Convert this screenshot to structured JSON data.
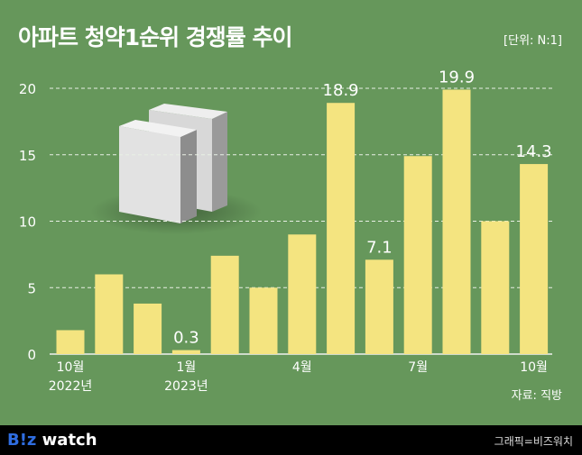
{
  "title": "아파트 청약1순위 경쟁률 추이",
  "unit": "[단위: N:1]",
  "source": "자료: 직방",
  "footer": {
    "logo_b": "B!z",
    "logo_rest": " watch",
    "credit": "그래픽=비즈워치"
  },
  "colors": {
    "background": "#66975b",
    "bar": "#f4e480",
    "footer": "#000000"
  },
  "chart_data": {
    "type": "bar",
    "title": "아파트 청약1순위 경쟁률 추이",
    "categories": [
      "2022-10",
      "2022-11",
      "2022-12",
      "2023-01",
      "2023-02",
      "2023-03",
      "2023-04",
      "2023-05",
      "2023-06",
      "2023-07",
      "2023-08",
      "2023-09",
      "2023-10"
    ],
    "values": [
      1.8,
      6.0,
      3.8,
      0.3,
      7.4,
      5.0,
      9.0,
      18.9,
      7.1,
      14.9,
      19.9,
      10.0,
      14.3
    ],
    "labeled": {
      "3": "0.3",
      "7": "18.9",
      "8": "7.1",
      "10": "19.9",
      "12": "14.3"
    },
    "xticks": [
      {
        "i": 0,
        "l1": "10월",
        "l2": "2022년"
      },
      {
        "i": 3,
        "l1": "1월",
        "l2": "2023년"
      },
      {
        "i": 6,
        "l1": "4월",
        "l2": ""
      },
      {
        "i": 9,
        "l1": "7월",
        "l2": ""
      },
      {
        "i": 12,
        "l1": "10월",
        "l2": ""
      }
    ],
    "yticks": [
      0,
      5,
      10,
      15,
      20
    ],
    "ylim": [
      0,
      20
    ],
    "grid": true
  }
}
